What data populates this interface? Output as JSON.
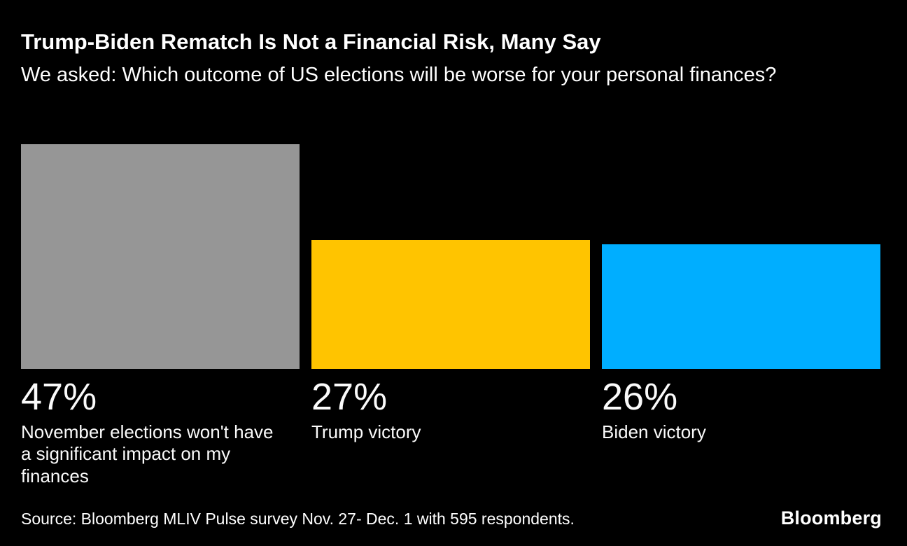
{
  "header": {
    "title": "Trump-Biden Rematch Is Not a Financial Risk, Many Say",
    "subtitle": "We asked: Which outcome of US elections will be worse for your personal finances?"
  },
  "chart_data": {
    "type": "bar",
    "title": "Trump-Biden Rematch Is Not a Financial Risk, Many Say",
    "subtitle": "We asked: Which outcome of US elections will be worse for your personal finances?",
    "categories": [
      "November elections won't have a significant impact on my finances",
      "Trump victory",
      "Biden victory"
    ],
    "values": [
      47,
      27,
      26
    ],
    "value_labels": [
      "47%",
      "27%",
      "26%"
    ],
    "colors": [
      "#969696",
      "#ffc400",
      "#00aeff"
    ],
    "ylim": [
      0,
      47
    ],
    "grid": false,
    "legend": "none",
    "xlabel": "",
    "ylabel": ""
  },
  "footer": {
    "source": "Source: Bloomberg MLIV Pulse survey Nov. 27- Dec. 1 with 595 respondents.",
    "logo": "Bloomberg"
  }
}
